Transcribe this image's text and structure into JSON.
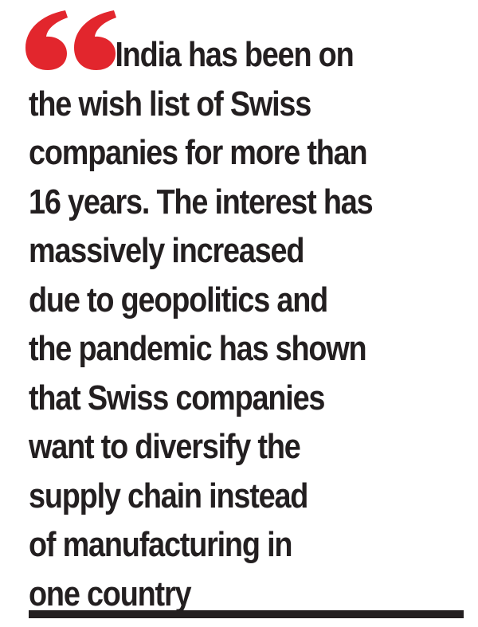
{
  "quote": {
    "mark_color": "#e2262d",
    "text_color": "#231f20",
    "lines": [
      "India has been on",
      "the wish list of Swiss",
      "companies for more than",
      "16 years. The interest has",
      "massively increased",
      "due to geopolitics and",
      "the pandemic has shown",
      "that Swiss companies",
      "want to diversify the",
      "supply chain instead",
      "of manufacturing in",
      "one country"
    ]
  },
  "icons": {
    "quote_mark": "quotation-mark-icon"
  }
}
